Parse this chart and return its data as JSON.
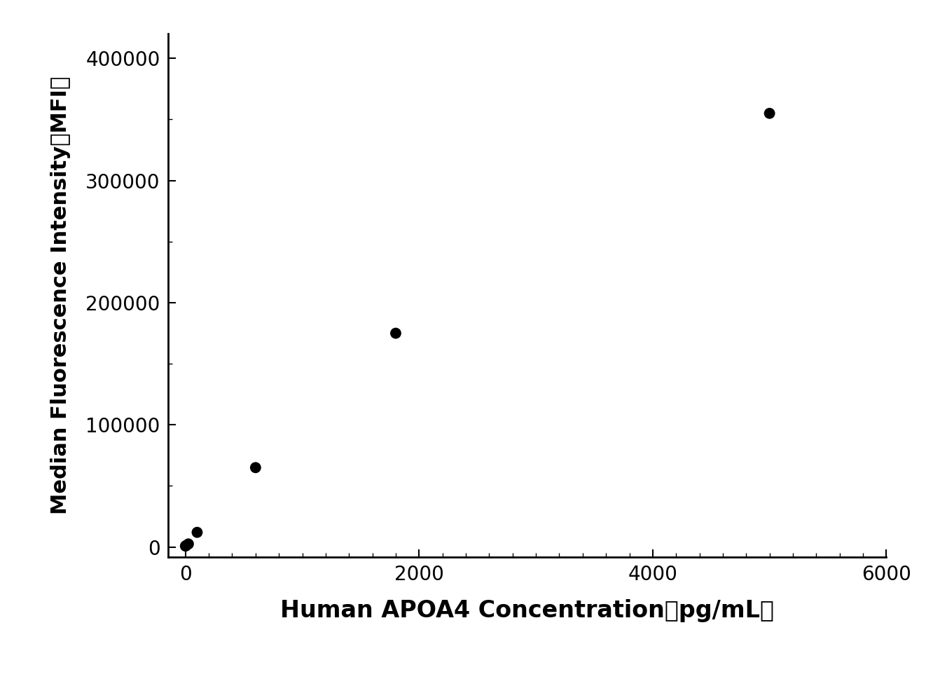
{
  "scatter_x": [
    0,
    6.25,
    25,
    100,
    600,
    1800,
    5000
  ],
  "scatter_y": [
    800,
    1200,
    2500,
    12000,
    65000,
    175000,
    355000
  ],
  "xlabel": "Human APOA4 Concentration（pg/mL）",
  "ylabel": "Median Fluorescence Intensity（MFI）",
  "xlim": [
    -150,
    6000
  ],
  "ylim": [
    -8000,
    420000
  ],
  "xticks": [
    0,
    2000,
    4000,
    6000
  ],
  "yticks": [
    0,
    100000,
    200000,
    300000,
    400000
  ],
  "xlabel_fontsize": 24,
  "ylabel_fontsize": 22,
  "tick_fontsize": 20,
  "marker_size": 130,
  "line_color": "#000000",
  "marker_color": "#000000",
  "background_color": "#ffffff",
  "figure_width": 13.32,
  "figure_height": 9.69
}
